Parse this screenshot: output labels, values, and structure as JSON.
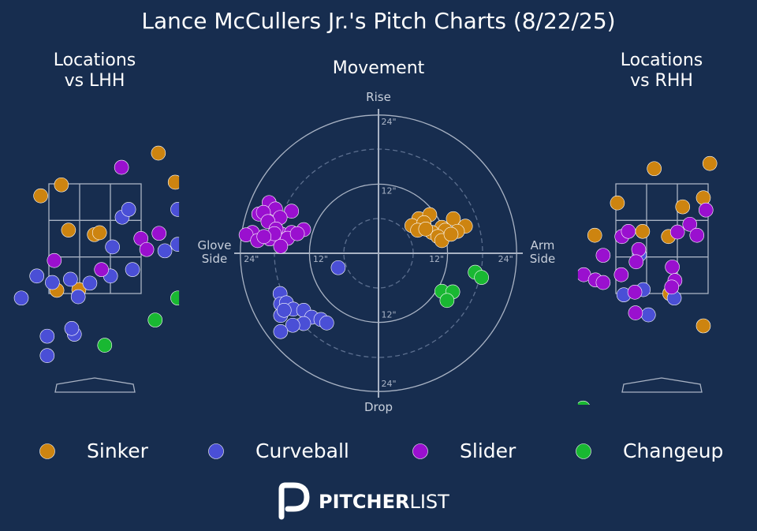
{
  "title": "Lance McCullers Jr.'s Pitch Charts (8/22/25)",
  "brand": [
    "PITCHER",
    "LIST"
  ],
  "chart_data": [
    {
      "type": "scatter",
      "title": "Locations\nvs LHH",
      "xlim": [
        -1.3,
        1.3
      ],
      "ylim": [
        -0.2,
        4.2
      ],
      "series": [
        {
          "name": "Sinker",
          "color": "#cd8410",
          "x": [
            0.98,
            -0.84,
            -0.52,
            1.24,
            -0.41,
            -0.01,
            0.07,
            -0.59,
            -0.25
          ],
          "y": [
            3.67,
            3.01,
            3.18,
            3.22,
            2.48,
            2.41,
            2.44,
            1.55,
            1.56
          ]
        },
        {
          "name": "Curveball",
          "color": "#4a4fd6",
          "x": [
            0.42,
            0.52,
            1.28,
            0.27,
            1.08,
            1.28,
            -0.9,
            -0.66,
            -0.38,
            -0.08,
            0.24,
            0.58,
            -0.26,
            -1.14,
            -0.74,
            -0.32,
            -0.36,
            -0.74
          ],
          "y": [
            2.68,
            2.8,
            2.8,
            2.22,
            2.16,
            2.26,
            1.77,
            1.67,
            1.72,
            1.66,
            1.77,
            1.87,
            1.45,
            1.43,
            0.84,
            0.87,
            0.96,
            0.54
          ]
        },
        {
          "name": "Slider",
          "color": "#9a10cf",
          "x": [
            0.41,
            0.71,
            0.8,
            0.99,
            -0.63,
            0.1
          ],
          "y": [
            3.45,
            2.35,
            2.18,
            2.43,
            2.01,
            1.87
          ]
        },
        {
          "name": "Changeup",
          "color": "#19b832",
          "x": [
            0.93,
            1.28,
            0.15
          ],
          "y": [
            1.09,
            1.43,
            0.7
          ]
        }
      ]
    },
    {
      "type": "movement",
      "title": "Movement",
      "xlim": [
        -25,
        25
      ],
      "ylim": [
        -25,
        25
      ],
      "xlabel_left": "Glove\nSide",
      "xlabel_right": "Arm\nSide",
      "ylabel_top": "Rise",
      "ylabel_bottom": "Drop",
      "xticks": [
        {
          "value": -24,
          "label": "24\""
        },
        {
          "value": -12,
          "label": "12\""
        },
        {
          "value": 12,
          "label": "12\""
        },
        {
          "value": 24,
          "label": "24\""
        }
      ],
      "yticks": [
        {
          "value": -24,
          "label": "24\""
        },
        {
          "value": -12,
          "label": "12\""
        },
        {
          "value": 12,
          "label": "12\""
        },
        {
          "value": 24,
          "label": "24\""
        }
      ],
      "series": [
        {
          "name": "Sinker",
          "color": "#cd8410",
          "x": [
            7.0,
            8.9,
            13.0,
            5.8,
            7.9,
            11.0,
            15.1,
            6.8,
            9.3,
            11.6,
            13.7,
            10.3,
            11.0,
            12.6,
            8.2
          ],
          "y": [
            6.0,
            6.7,
            6.0,
            4.8,
            5.3,
            4.5,
            4.7,
            4.0,
            3.6,
            4.0,
            3.8,
            2.9,
            2.2,
            3.3,
            4.2
          ]
        },
        {
          "name": "Curveball",
          "color": "#4a4fd6",
          "x": [
            -7.0,
            -17.1,
            -17.0,
            -16.0,
            -17.0,
            -14.8,
            -13.0,
            -11.6,
            -13.0,
            -14.9,
            -17.0,
            -10.0,
            -9.0,
            -16.4
          ],
          "y": [
            -2.5,
            -7.0,
            -8.8,
            -8.6,
            -10.8,
            -9.7,
            -9.9,
            -11.1,
            -12.2,
            -12.5,
            -13.6,
            -11.5,
            -12.1,
            -9.9
          ]
        },
        {
          "name": "Slider",
          "color": "#9a10cf",
          "x": [
            -19.0,
            -17.9,
            -20.8,
            -20.0,
            -15.1,
            -17.1,
            -19.2,
            -21.9,
            -23.0,
            -21.0,
            -18.9,
            -16.8,
            -15.1,
            -13.0,
            -17.8,
            -15.8,
            -17.0,
            -14.1,
            -18.1,
            -19.9
          ],
          "y": [
            8.8,
            7.7,
            6.8,
            7.1,
            7.3,
            6.2,
            5.5,
            3.6,
            3.2,
            2.2,
            2.5,
            3.3,
            3.6,
            4.1,
            4.2,
            2.6,
            1.2,
            3.4,
            3.4,
            2.9
          ]
        },
        {
          "name": "Changeup",
          "color": "#19b832",
          "x": [
            16.8,
            17.9,
            11.0,
            12.9,
            11.9
          ],
          "y": [
            -3.3,
            -4.2,
            -6.6,
            -6.7,
            -8.2
          ]
        }
      ]
    },
    {
      "type": "scatter",
      "title": "Locations\nvs RHH",
      "xlim": [
        -1.3,
        1.3
      ],
      "ylim": [
        -0.2,
        4.2
      ],
      "series": [
        {
          "name": "Sinker",
          "color": "#cd8410",
          "x": [
            -0.12,
            0.74,
            -0.69,
            0.64,
            0.32,
            -1.04,
            -0.3,
            0.1,
            0.12,
            0.64
          ],
          "y": [
            3.43,
            3.51,
            2.9,
            2.98,
            2.84,
            2.4,
            2.46,
            2.38,
            1.5,
            1.0
          ]
        },
        {
          "name": "Curveball",
          "color": "#4a4fd6",
          "x": [
            -0.35,
            -0.59,
            -0.29,
            0.19,
            -0.21
          ],
          "y": [
            2.1,
            1.48,
            1.56,
            1.43,
            1.17
          ]
        },
        {
          "name": "Slider",
          "color": "#9a10cf",
          "x": [
            0.68,
            0.43,
            0.24,
            0.54,
            -0.62,
            -0.52,
            -0.36,
            -0.4,
            -0.91,
            -0.63,
            -1.21,
            -1.03,
            -0.91,
            0.16,
            0.2,
            0.15,
            -0.42,
            -0.41
          ],
          "y": [
            2.79,
            2.57,
            2.45,
            2.4,
            2.38,
            2.46,
            2.18,
            1.99,
            2.09,
            1.79,
            1.79,
            1.71,
            1.67,
            1.91,
            1.7,
            1.6,
            1.52,
            1.2
          ]
        },
        {
          "name": "Changeup",
          "color": "#19b832",
          "x": [
            -1.22
          ],
          "y": [
            -0.27
          ]
        }
      ]
    }
  ]
}
